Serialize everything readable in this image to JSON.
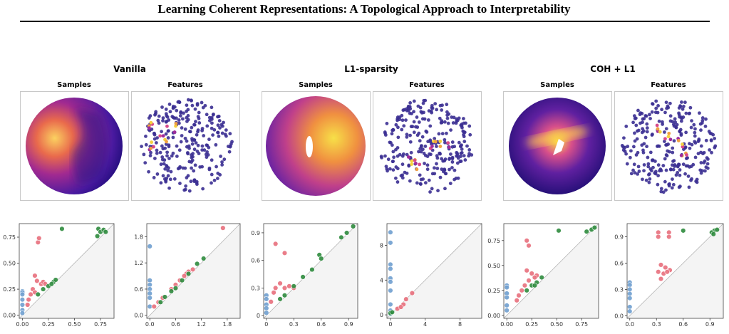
{
  "header": {
    "title": "Learning Coherent Representations: A Topological Approach to Interpretability"
  },
  "panels": [
    {
      "title": "Vanilla",
      "samples_label": "Samples",
      "features_label": "Features"
    },
    {
      "title": "L1-sparsity",
      "samples_label": "Samples",
      "features_label": "Features"
    },
    {
      "title": "COH + L1",
      "samples_label": "Samples",
      "features_label": "Features"
    }
  ],
  "chart_data": [
    {
      "type": "scatter",
      "xlim": [
        -0.03,
        0.88
      ],
      "ylim": [
        -0.03,
        0.88
      ],
      "xticks": [
        {
          "value": 0,
          "label": "0.00"
        },
        0.25,
        {
          "value": 0.5,
          "label": "0.50"
        },
        0.75
      ],
      "yticks": [
        {
          "value": 0,
          "label": "0.00"
        },
        0.25,
        {
          "value": 0.5,
          "label": "0.50"
        },
        0.75
      ],
      "series": [
        {
          "color": "#6f9fd0",
          "x": [
            0,
            0,
            0,
            0,
            0,
            0,
            0
          ],
          "values": [
            0.23,
            0.22,
            0.2,
            0.15,
            0.1,
            0.05,
            0.02
          ]
        },
        {
          "color": "#e8707d",
          "x": [
            0.15,
            0.16,
            0.12,
            0.14,
            0.18,
            0.2,
            0.22,
            0.1,
            0.08,
            0.12,
            0.06,
            0.05
          ],
          "values": [
            0.7,
            0.74,
            0.38,
            0.33,
            0.3,
            0.32,
            0.3,
            0.25,
            0.2,
            0.22,
            0.15,
            0.1
          ]
        },
        {
          "color": "#2e8b3e",
          "x": [
            0.38,
            0.73,
            0.75,
            0.78,
            0.72,
            0.8,
            0.3,
            0.25,
            0.2,
            0.28,
            0.15,
            0.32
          ],
          "values": [
            0.83,
            0.83,
            0.8,
            0.82,
            0.76,
            0.8,
            0.32,
            0.28,
            0.25,
            0.3,
            0.2,
            0.34
          ]
        }
      ]
    },
    {
      "type": "scatter",
      "xlim": [
        -0.07,
        2.1
      ],
      "ylim": [
        -0.07,
        2.1
      ],
      "xticks": [
        {
          "value": 0,
          "label": "0.0"
        },
        0.6,
        1.2,
        1.8
      ],
      "yticks": [
        {
          "value": 0,
          "label": "0.0"
        },
        0.6,
        1.2,
        1.8
      ],
      "series": [
        {
          "color": "#6f9fd0",
          "x": [
            0,
            0,
            0,
            0,
            0,
            0,
            0
          ],
          "values": [
            1.58,
            0.8,
            0.7,
            0.6,
            0.5,
            0.4,
            0.2
          ]
        },
        {
          "color": "#e8707d",
          "x": [
            1.7,
            0.9,
            0.85,
            0.8,
            1.0,
            0.7,
            0.5,
            0.3,
            0.2,
            0.6,
            0.1
          ],
          "values": [
            2.0,
            1.0,
            0.95,
            0.9,
            1.05,
            0.8,
            0.6,
            0.4,
            0.3,
            0.7,
            0.2
          ]
        },
        {
          "color": "#2e8b3e",
          "x": [
            1.25,
            1.1,
            0.9,
            0.6,
            0.5,
            0.35,
            0.25,
            0.75
          ],
          "values": [
            1.3,
            1.18,
            0.95,
            0.62,
            0.55,
            0.42,
            0.3,
            0.8
          ]
        }
      ]
    },
    {
      "type": "scatter",
      "xlim": [
        -0.03,
        1.0
      ],
      "ylim": [
        -0.03,
        1.0
      ],
      "xticks": [
        0,
        0.3,
        0.6,
        0.9
      ],
      "yticks": [
        0,
        0.3,
        0.6,
        0.9
      ],
      "series": [
        {
          "color": "#6f9fd0",
          "x": [
            0,
            0,
            0,
            0,
            0
          ],
          "values": [
            0.22,
            0.18,
            0.12,
            0.08,
            0.03
          ]
        },
        {
          "color": "#e8707d",
          "x": [
            0.1,
            0.2,
            0.15,
            0.1,
            0.2,
            0.25,
            0.08,
            0.05,
            0.3
          ],
          "values": [
            0.78,
            0.68,
            0.35,
            0.3,
            0.3,
            0.32,
            0.25,
            0.15,
            0.3
          ]
        },
        {
          "color": "#2e8b3e",
          "x": [
            0.58,
            0.95,
            0.88,
            0.82,
            0.6,
            0.5,
            0.4,
            0.3,
            0.2,
            0.15
          ],
          "values": [
            0.66,
            0.97,
            0.9,
            0.85,
            0.62,
            0.5,
            0.42,
            0.32,
            0.22,
            0.18
          ]
        }
      ]
    },
    {
      "type": "scatter",
      "xlim": [
        -0.4,
        10.5
      ],
      "ylim": [
        -0.4,
        10.5
      ],
      "xticks": [
        0,
        4,
        8
      ],
      "yticks": [
        0,
        4,
        8
      ],
      "series": [
        {
          "color": "#6f9fd0",
          "x": [
            0,
            0,
            0,
            0,
            0,
            0,
            0,
            0,
            0,
            0
          ],
          "values": [
            9.5,
            8.3,
            5.8,
            5.3,
            4.2,
            3.8,
            2.8,
            1.2,
            0.5,
            0.1
          ]
        },
        {
          "color": "#e8707d",
          "x": [
            2.5,
            1.8,
            1.5,
            0.8,
            1.2
          ],
          "values": [
            2.5,
            1.8,
            1.2,
            0.7,
            0.9
          ]
        },
        {
          "color": "#2e8b3e",
          "x": [
            0,
            0.2
          ],
          "values": [
            0.2,
            0.3
          ]
        }
      ]
    },
    {
      "type": "scatter",
      "xlim": [
        -0.03,
        0.92
      ],
      "ylim": [
        -0.03,
        0.92
      ],
      "xticks": [
        {
          "value": 0,
          "label": "0.00"
        },
        0.25,
        {
          "value": 0.5,
          "label": "0.50"
        },
        0.75
      ],
      "yticks": [
        {
          "value": 0,
          "label": "0.00"
        },
        0.25,
        {
          "value": 0.5,
          "label": "0.50"
        },
        0.75
      ],
      "series": [
        {
          "color": "#6f9fd0",
          "x": [
            0,
            0,
            0,
            0,
            0,
            0
          ],
          "values": [
            0.3,
            0.28,
            0.22,
            0.18,
            0.1,
            0.05
          ]
        },
        {
          "color": "#e8707d",
          "x": [
            0.2,
            0.22,
            0.2,
            0.25,
            0.3,
            0.22,
            0.18,
            0.15,
            0.12,
            0.28,
            0.1
          ],
          "values": [
            0.75,
            0.7,
            0.45,
            0.42,
            0.4,
            0.35,
            0.3,
            0.25,
            0.2,
            0.38,
            0.15
          ]
        },
        {
          "color": "#2e8b3e",
          "x": [
            0.52,
            0.85,
            0.88,
            0.8,
            0.35,
            0.3,
            0.25,
            0.28,
            0.2
          ],
          "values": [
            0.85,
            0.86,
            0.88,
            0.84,
            0.38,
            0.33,
            0.3,
            0.3,
            0.25
          ]
        }
      ]
    },
    {
      "type": "scatter",
      "xlim": [
        -0.03,
        1.05
      ],
      "ylim": [
        -0.03,
        1.05
      ],
      "xticks": [
        {
          "value": 0,
          "label": "0.0"
        },
        0.3,
        0.6,
        0.9
      ],
      "yticks": [
        {
          "value": 0,
          "label": "0.0"
        },
        0.3,
        0.6,
        0.9
      ],
      "series": [
        {
          "color": "#6f9fd0",
          "x": [
            0,
            0,
            0,
            0,
            0,
            0,
            0
          ],
          "values": [
            0.38,
            0.35,
            0.3,
            0.25,
            0.2,
            0.1,
            0.05
          ]
        },
        {
          "color": "#e8707d",
          "x": [
            0.32,
            0.32,
            0.44,
            0.44,
            0.35,
            0.4,
            0.45,
            0.32,
            0.38,
            0.35,
            0.42
          ],
          "values": [
            0.95,
            0.9,
            0.95,
            0.9,
            0.58,
            0.55,
            0.52,
            0.5,
            0.48,
            0.42,
            0.5
          ]
        },
        {
          "color": "#2e8b3e",
          "x": [
            0.6,
            0.95,
            0.98,
            0.92,
            0.94
          ],
          "values": [
            0.97,
            0.97,
            0.98,
            0.95,
            0.93
          ]
        }
      ]
    }
  ]
}
